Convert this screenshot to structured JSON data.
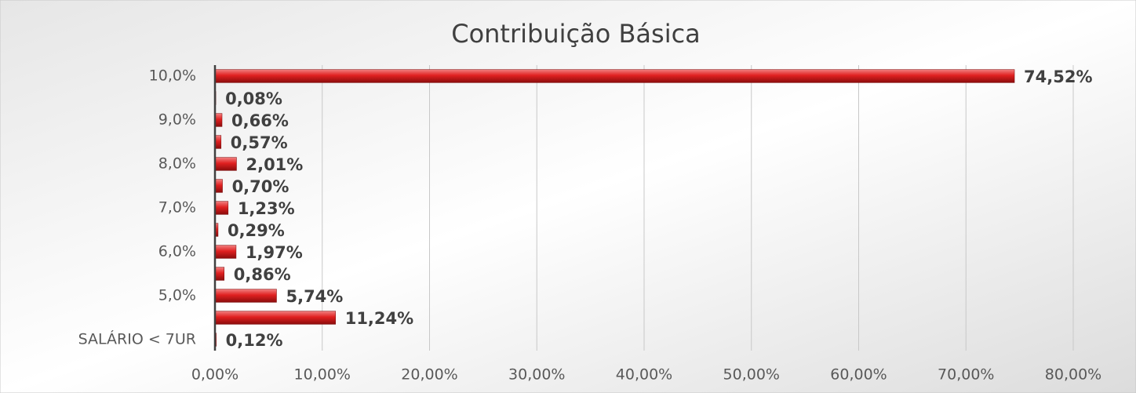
{
  "chart_data": {
    "type": "barh",
    "title": "Contribuição Básica",
    "categories": [
      "SALÁRIO < 7UR",
      null,
      "5,0%",
      null,
      "6,0%",
      null,
      "7,0%",
      null,
      "8,0%",
      null,
      "9,0%",
      null,
      "10,0%"
    ],
    "values": [
      0.12,
      11.24,
      5.74,
      0.86,
      1.97,
      0.29,
      1.23,
      0.7,
      2.01,
      0.57,
      0.66,
      0.08,
      74.52
    ],
    "value_labels": [
      "0,12%",
      "11,24%",
      "5,74%",
      "0,86%",
      "1,97%",
      "0,29%",
      "1,23%",
      "0,70%",
      "2,01%",
      "0,57%",
      "0,66%",
      "0,08%",
      "74,52%"
    ],
    "color": "#e02020",
    "xlim": [
      0,
      80
    ],
    "xticks": [
      {
        "value": 0,
        "label": "0,00%"
      },
      {
        "value": 10,
        "label": "10,00%"
      },
      {
        "value": 20,
        "label": "20,00%"
      },
      {
        "value": 30,
        "label": "30,00%"
      },
      {
        "value": 40,
        "label": "40,00%"
      },
      {
        "value": 50,
        "label": "50,00%"
      },
      {
        "value": 60,
        "label": "60,00%"
      },
      {
        "value": 70,
        "label": "70,00%"
      },
      {
        "value": 80,
        "label": "80,00%"
      }
    ],
    "grid": true
  }
}
